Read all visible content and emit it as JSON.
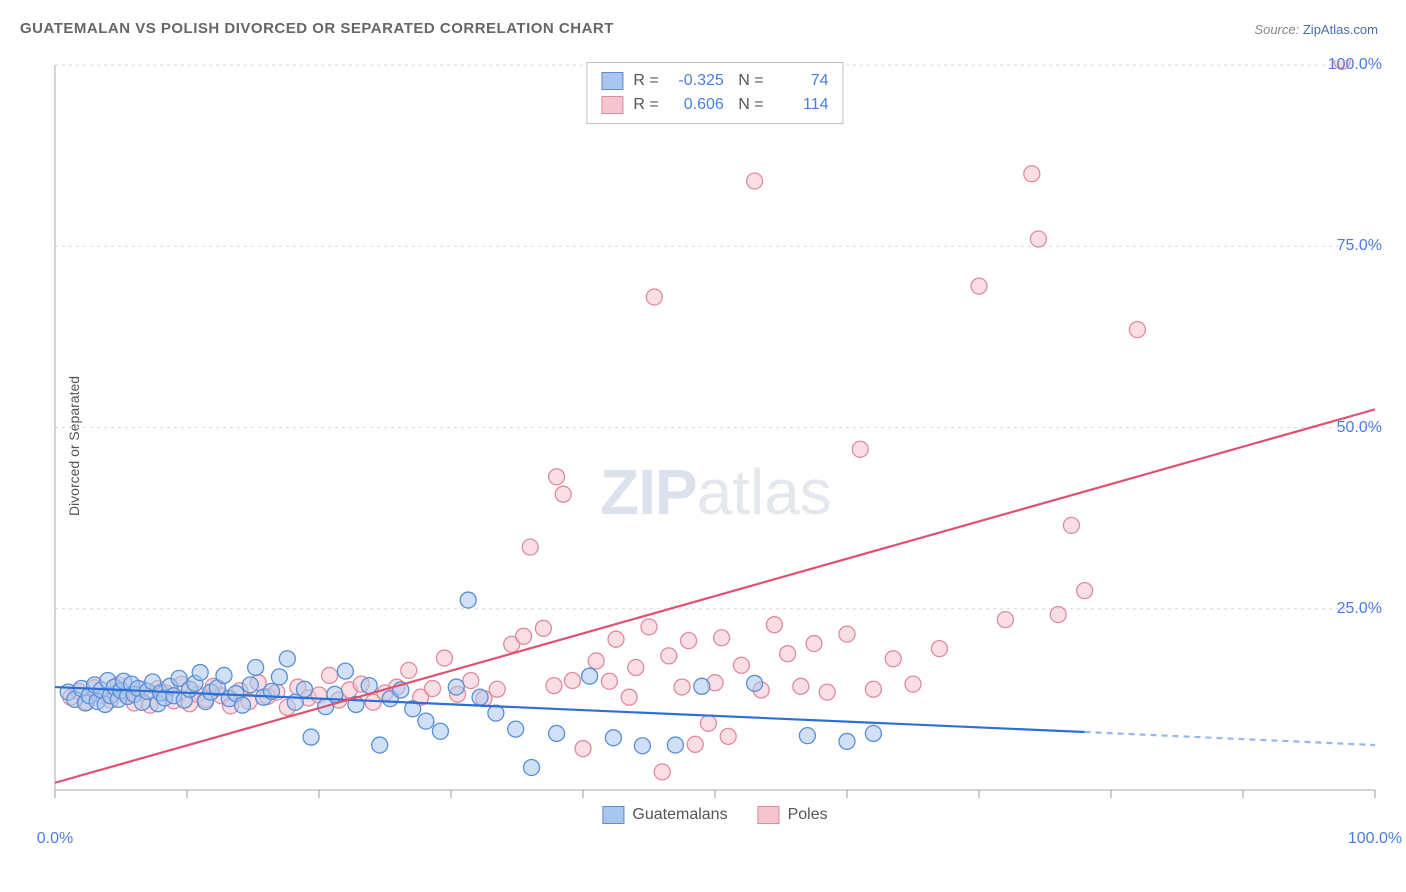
{
  "title": "GUATEMALAN VS POLISH DIVORCED OR SEPARATED CORRELATION CHART",
  "source_label": "Source:",
  "source_value": "ZipAtlas.com",
  "y_axis_label": "Divorced or Separated",
  "watermark_zip": "ZIP",
  "watermark_atlas": "atlas",
  "chart": {
    "type": "scatter",
    "xlim": [
      0,
      100
    ],
    "ylim": [
      0,
      100
    ],
    "x_tick_step": 10,
    "y_tick_step": 25,
    "x_tick_labels_visible": {
      "0": "0.0%",
      "100": "100.0%"
    },
    "y_tick_labels_visible": {
      "25": "25.0%",
      "50": "50.0%",
      "75": "75.0%",
      "100": "100.0%"
    },
    "background_color": "#ffffff",
    "grid_color": "#d8d8d8",
    "grid_dash": "3,4",
    "axis_color": "#bbbbbb",
    "tick_color": "#999999",
    "label_color": "#4a7de0",
    "label_fontsize": 16,
    "marker_radius": 8,
    "marker_opacity": 0.55,
    "series": [
      {
        "name": "Guatemalans",
        "fill_color": "#a9c6ef",
        "stroke_color": "#5a8ed6",
        "R": "-0.325",
        "N": "74",
        "trend": {
          "x1": 0,
          "y1": 14.2,
          "x2": 78,
          "y2": 8.0,
          "x2b": 100,
          "y2b": 6.2,
          "color": "#2e6fd6",
          "width": 2.2,
          "dash_after_x": 78
        },
        "points": [
          [
            1,
            13.5
          ],
          [
            1.5,
            12.5
          ],
          [
            2,
            14
          ],
          [
            2.3,
            12
          ],
          [
            2.6,
            13
          ],
          [
            3,
            14.5
          ],
          [
            3.2,
            12.2
          ],
          [
            3.5,
            13.8
          ],
          [
            3.8,
            11.8
          ],
          [
            4,
            15.1
          ],
          [
            4.2,
            13
          ],
          [
            4.5,
            14.2
          ],
          [
            4.8,
            12.5
          ],
          [
            5,
            13.7
          ],
          [
            5.2,
            15
          ],
          [
            5.5,
            12.9
          ],
          [
            5.8,
            14.6
          ],
          [
            6,
            13.2
          ],
          [
            6.3,
            14.0
          ],
          [
            6.6,
            12.1
          ],
          [
            7,
            13.6
          ],
          [
            7.4,
            14.9
          ],
          [
            7.8,
            11.9
          ],
          [
            8,
            13.4
          ],
          [
            8.3,
            12.7
          ],
          [
            8.7,
            14.3
          ],
          [
            9,
            13
          ],
          [
            9.4,
            15.4
          ],
          [
            9.8,
            12.4
          ],
          [
            10.2,
            13.9
          ],
          [
            10.6,
            14.7
          ],
          [
            11,
            16.2
          ],
          [
            11.4,
            12.2
          ],
          [
            11.8,
            13.5
          ],
          [
            12.3,
            14.1
          ],
          [
            12.8,
            15.8
          ],
          [
            13.2,
            12.6
          ],
          [
            13.7,
            13.3
          ],
          [
            14.2,
            11.7
          ],
          [
            14.8,
            14.5
          ],
          [
            15.2,
            16.9
          ],
          [
            15.8,
            12.8
          ],
          [
            16.4,
            13.6
          ],
          [
            17,
            15.6
          ],
          [
            17.6,
            18.1
          ],
          [
            18.2,
            12.1
          ],
          [
            18.9,
            13.9
          ],
          [
            19.4,
            7.3
          ],
          [
            20.5,
            11.5
          ],
          [
            21.2,
            13.2
          ],
          [
            22,
            16.4
          ],
          [
            22.8,
            11.8
          ],
          [
            23.8,
            14.4
          ],
          [
            24.6,
            6.2
          ],
          [
            25.4,
            12.6
          ],
          [
            26.2,
            13.8
          ],
          [
            27.1,
            11.2
          ],
          [
            28.1,
            9.5
          ],
          [
            29.2,
            8.1
          ],
          [
            30.4,
            14.2
          ],
          [
            31.3,
            26.2
          ],
          [
            32.2,
            12.8
          ],
          [
            33.4,
            10.6
          ],
          [
            34.9,
            8.4
          ],
          [
            36.1,
            3.1
          ],
          [
            38,
            7.8
          ],
          [
            40.5,
            15.7
          ],
          [
            42.3,
            7.2
          ],
          [
            44.5,
            6.1
          ],
          [
            47,
            6.2
          ],
          [
            49,
            14.3
          ],
          [
            53,
            14.7
          ],
          [
            57,
            7.5
          ],
          [
            60,
            6.7
          ],
          [
            62,
            7.8
          ]
        ]
      },
      {
        "name": "Poles",
        "fill_color": "#f4c5cf",
        "stroke_color": "#e08aa0",
        "R": "0.606",
        "N": "114",
        "trend": {
          "x1": 0,
          "y1": 1.0,
          "x2": 100,
          "y2": 52.5,
          "color": "#e0506f",
          "width": 2.2
        },
        "points": [
          [
            1.2,
            12.8
          ],
          [
            1.8,
            13.6
          ],
          [
            2.4,
            12.1
          ],
          [
            3.0,
            14.1
          ],
          [
            3.6,
            13.0
          ],
          [
            4.2,
            12.4
          ],
          [
            4.8,
            14.5
          ],
          [
            5.4,
            13.3
          ],
          [
            6.0,
            12.0
          ],
          [
            6.6,
            13.9
          ],
          [
            7.2,
            11.7
          ],
          [
            7.8,
            14.0
          ],
          [
            8.4,
            13.4
          ],
          [
            9.0,
            12.3
          ],
          [
            9.6,
            14.6
          ],
          [
            10.2,
            11.9
          ],
          [
            10.8,
            13.2
          ],
          [
            11.4,
            12.5
          ],
          [
            12.0,
            14.3
          ],
          [
            12.6,
            13.0
          ],
          [
            13.3,
            11.6
          ],
          [
            14.0,
            13.7
          ],
          [
            14.7,
            12.2
          ],
          [
            15.4,
            14.8
          ],
          [
            16.1,
            12.9
          ],
          [
            16.8,
            13.5
          ],
          [
            17.6,
            11.4
          ],
          [
            18.4,
            14.2
          ],
          [
            19.2,
            12.7
          ],
          [
            20.0,
            13.1
          ],
          [
            20.8,
            15.8
          ],
          [
            21.5,
            12.4
          ],
          [
            22.3,
            13.8
          ],
          [
            23.2,
            14.6
          ],
          [
            24.1,
            12.1
          ],
          [
            25.0,
            13.4
          ],
          [
            25.9,
            14.2
          ],
          [
            26.8,
            16.5
          ],
          [
            27.7,
            12.8
          ],
          [
            28.6,
            14.0
          ],
          [
            29.5,
            18.2
          ],
          [
            30.5,
            13.2
          ],
          [
            31.5,
            15.1
          ],
          [
            32.5,
            12.6
          ],
          [
            33.5,
            13.9
          ],
          [
            34.6,
            20.1
          ],
          [
            35.5,
            21.2
          ],
          [
            36.0,
            33.5
          ],
          [
            37.0,
            22.3
          ],
          [
            37.8,
            14.4
          ],
          [
            38.0,
            43.2
          ],
          [
            38.5,
            40.8
          ],
          [
            39.2,
            15.1
          ],
          [
            40.0,
            5.7
          ],
          [
            41.0,
            17.8
          ],
          [
            42.0,
            15.0
          ],
          [
            42.5,
            20.8
          ],
          [
            43.5,
            12.8
          ],
          [
            44.0,
            16.9
          ],
          [
            45.0,
            22.5
          ],
          [
            45.4,
            68.0
          ],
          [
            46,
            2.5
          ],
          [
            46.5,
            18.5
          ],
          [
            47.5,
            14.2
          ],
          [
            48.0,
            20.6
          ],
          [
            48.5,
            6.3
          ],
          [
            49.5,
            9.2
          ],
          [
            50.0,
            14.8
          ],
          [
            50.5,
            21.0
          ],
          [
            51.0,
            7.4
          ],
          [
            52.0,
            17.2
          ],
          [
            53,
            84.0
          ],
          [
            53.5,
            13.8
          ],
          [
            54.5,
            22.8
          ],
          [
            55.5,
            18.8
          ],
          [
            56.5,
            14.3
          ],
          [
            57.5,
            20.2
          ],
          [
            58.5,
            13.5
          ],
          [
            60.0,
            21.5
          ],
          [
            61.0,
            47.0
          ],
          [
            62.0,
            13.9
          ],
          [
            63.5,
            18.1
          ],
          [
            65.0,
            14.6
          ],
          [
            67.0,
            19.5
          ],
          [
            70.0,
            69.5
          ],
          [
            72,
            23.5
          ],
          [
            74.0,
            85.0
          ],
          [
            74.5,
            76.0
          ],
          [
            76.0,
            24.2
          ],
          [
            77.0,
            36.5
          ],
          [
            78.0,
            27.5
          ],
          [
            82.0,
            63.5
          ],
          [
            97.5,
            100.5
          ]
        ]
      }
    ]
  },
  "bottom_legend": [
    {
      "label": "Guatemalans",
      "fill": "#a9c6ef",
      "stroke": "#5a8ed6"
    },
    {
      "label": "Poles",
      "fill": "#f4c5cf",
      "stroke": "#e08aa0"
    }
  ]
}
